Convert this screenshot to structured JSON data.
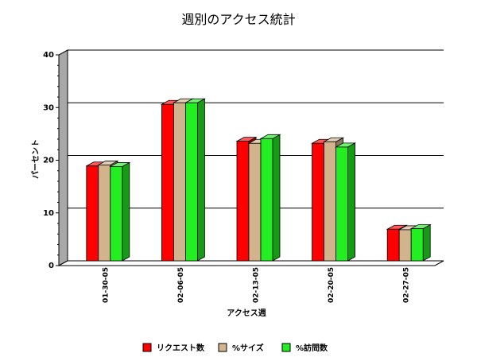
{
  "chart_data": {
    "type": "bar",
    "title": "週別のアクセス統計",
    "xlabel": "アクセス週",
    "ylabel": "パーセント",
    "ylim": [
      0,
      40
    ],
    "yticks": [
      0,
      10,
      20,
      30,
      40
    ],
    "grid": true,
    "legend_position": "bottom",
    "categories": [
      "01-30-05",
      "02-06-05",
      "02-13-05",
      "02-20-05",
      "02-27-05"
    ],
    "series": [
      {
        "name": "リクエスト数",
        "color": "#ff0000",
        "values": [
          18.0,
          29.7,
          22.7,
          22.3,
          6.0
        ]
      },
      {
        "name": "%サイズ",
        "color": "#d2b48c",
        "values": [
          18.2,
          30.0,
          22.3,
          22.6,
          5.9
        ]
      },
      {
        "name": "%訪問数",
        "color": "#22ee22",
        "values": [
          17.9,
          30.0,
          23.2,
          21.6,
          6.1
        ]
      }
    ]
  }
}
